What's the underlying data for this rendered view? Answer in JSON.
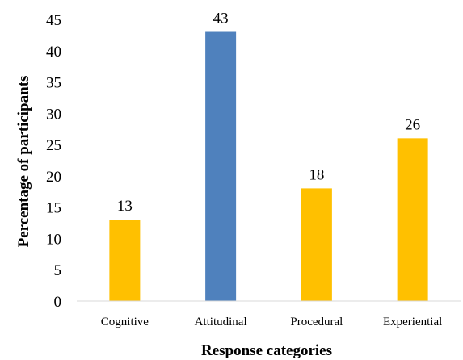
{
  "chart_data": {
    "type": "bar",
    "categories": [
      "Cognitive",
      "Attitudinal",
      "Procedural",
      "Experiential"
    ],
    "values": [
      13,
      43,
      18,
      26
    ],
    "data_labels": [
      "13",
      "43",
      "18",
      "26"
    ],
    "bar_colors": [
      "#FFC000",
      "#4F81BD",
      "#FFC000",
      "#FFC000"
    ],
    "xlabel": "Response categories",
    "ylabel": "Percentage of participants",
    "ylim": [
      0,
      45
    ],
    "yticks": [
      "0",
      "5",
      "10",
      "15",
      "20",
      "25",
      "30",
      "35",
      "40",
      "45"
    ],
    "grid": false,
    "legend": "none"
  }
}
